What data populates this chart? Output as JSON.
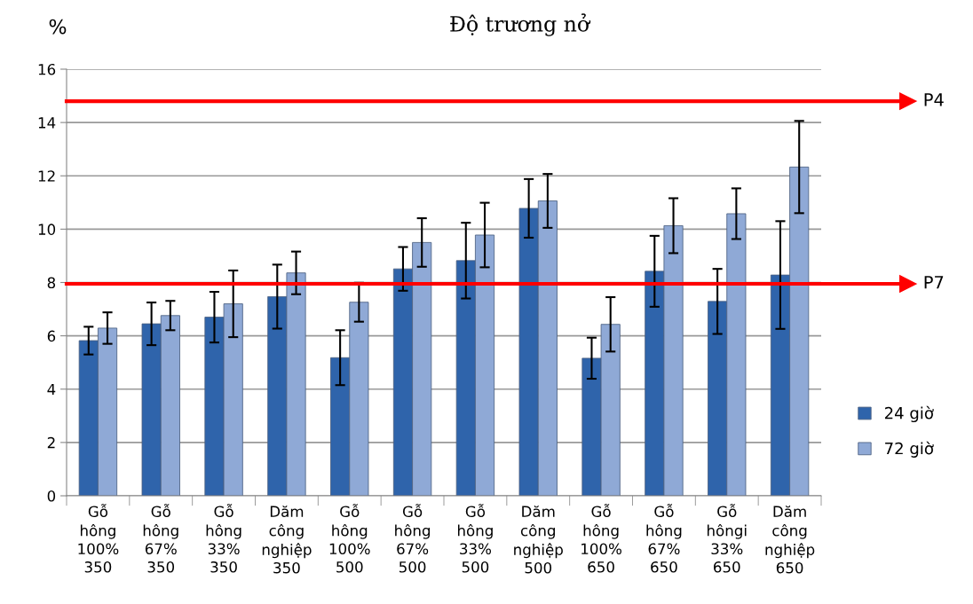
{
  "chart_data": {
    "type": "bar",
    "title": "Độ trương nở",
    "ylabel": "%",
    "categories": [
      "Gỗ\nhông\n100%\n350",
      "Gỗ\nhông\n67%\n350",
      "Gỗ\nhông\n33%\n350",
      "Dăm\ncông\nnghiệp\n350",
      "Gỗ\nhông\n100%\n500",
      "Gỗ\nhông\n67%\n500",
      "Gỗ\nhông\n33%\n500",
      "Dăm\ncông\nnghiệp\n500",
      "Gỗ\nhông\n100%\n650",
      "Gỗ\nhông\n67%\n650",
      "Gỗ\nhôngi\n33%\n650",
      "Dăm\ncông\nnghiệp\n650"
    ],
    "series": [
      {
        "name": "24 giờ",
        "color": "#2f64ab",
        "values": [
          5.82,
          6.45,
          6.7,
          7.47,
          5.18,
          8.51,
          8.82,
          10.78,
          5.16,
          8.42,
          7.29,
          8.28
        ],
        "errors": [
          0.52,
          0.8,
          0.95,
          1.2,
          1.03,
          0.82,
          1.42,
          1.1,
          0.77,
          1.33,
          1.22,
          2.02
        ]
      },
      {
        "name": "72 giờ",
        "color": "#8fa9d6",
        "values": [
          6.29,
          6.76,
          7.2,
          8.36,
          7.26,
          9.5,
          9.78,
          11.06,
          6.43,
          10.13,
          10.58,
          12.33
        ],
        "errors": [
          0.59,
          0.55,
          1.25,
          0.8,
          0.73,
          0.91,
          1.21,
          1.01,
          1.02,
          1.03,
          0.95,
          1.73
        ]
      }
    ],
    "ylim": [
      0,
      16
    ],
    "yticks": [
      0,
      2,
      4,
      6,
      8,
      10,
      12,
      14,
      16
    ],
    "grid": "y",
    "legend": "right",
    "ref_lines": [
      {
        "axis": "y",
        "value": 14.8,
        "label": "P4",
        "color": "#ff0000"
      },
      {
        "axis": "y",
        "value": 7.95,
        "label": "P7",
        "color": "#ff0000"
      }
    ]
  }
}
